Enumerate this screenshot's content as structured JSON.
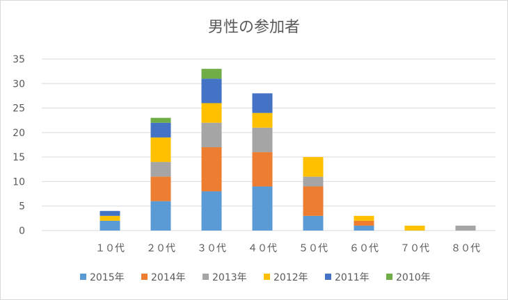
{
  "chart_data": {
    "type": "bar",
    "stacked": true,
    "title": "男性の参加者",
    "xlabel": "",
    "ylabel": "",
    "ylim": [
      0,
      35
    ],
    "yticks": [
      0,
      5,
      10,
      15,
      20,
      25,
      30,
      35
    ],
    "grid": true,
    "legend_position": "bottom",
    "categories": [
      "１０代",
      "２０代",
      "３０代",
      "４０代",
      "５０代",
      "６０代",
      "７０代",
      "８０代"
    ],
    "series": [
      {
        "name": "2015年",
        "color": "#5B9BD5",
        "values": [
          2,
          6,
          8,
          9,
          3,
          1,
          0,
          0
        ]
      },
      {
        "name": "2014年",
        "color": "#ED7D31",
        "values": [
          0,
          5,
          9,
          7,
          6,
          1,
          0,
          0
        ]
      },
      {
        "name": "2013年",
        "color": "#A5A5A5",
        "values": [
          0,
          3,
          5,
          5,
          2,
          0,
          0,
          1
        ]
      },
      {
        "name": "2012年",
        "color": "#FFC000",
        "values": [
          1,
          5,
          4,
          3,
          4,
          1,
          1,
          0
        ]
      },
      {
        "name": "2011年",
        "color": "#4472C4",
        "values": [
          1,
          3,
          5,
          4,
          0,
          0,
          0,
          0
        ]
      },
      {
        "name": "2010年",
        "color": "#70AD47",
        "values": [
          0,
          1,
          2,
          0,
          0,
          0,
          0,
          0
        ]
      }
    ]
  }
}
